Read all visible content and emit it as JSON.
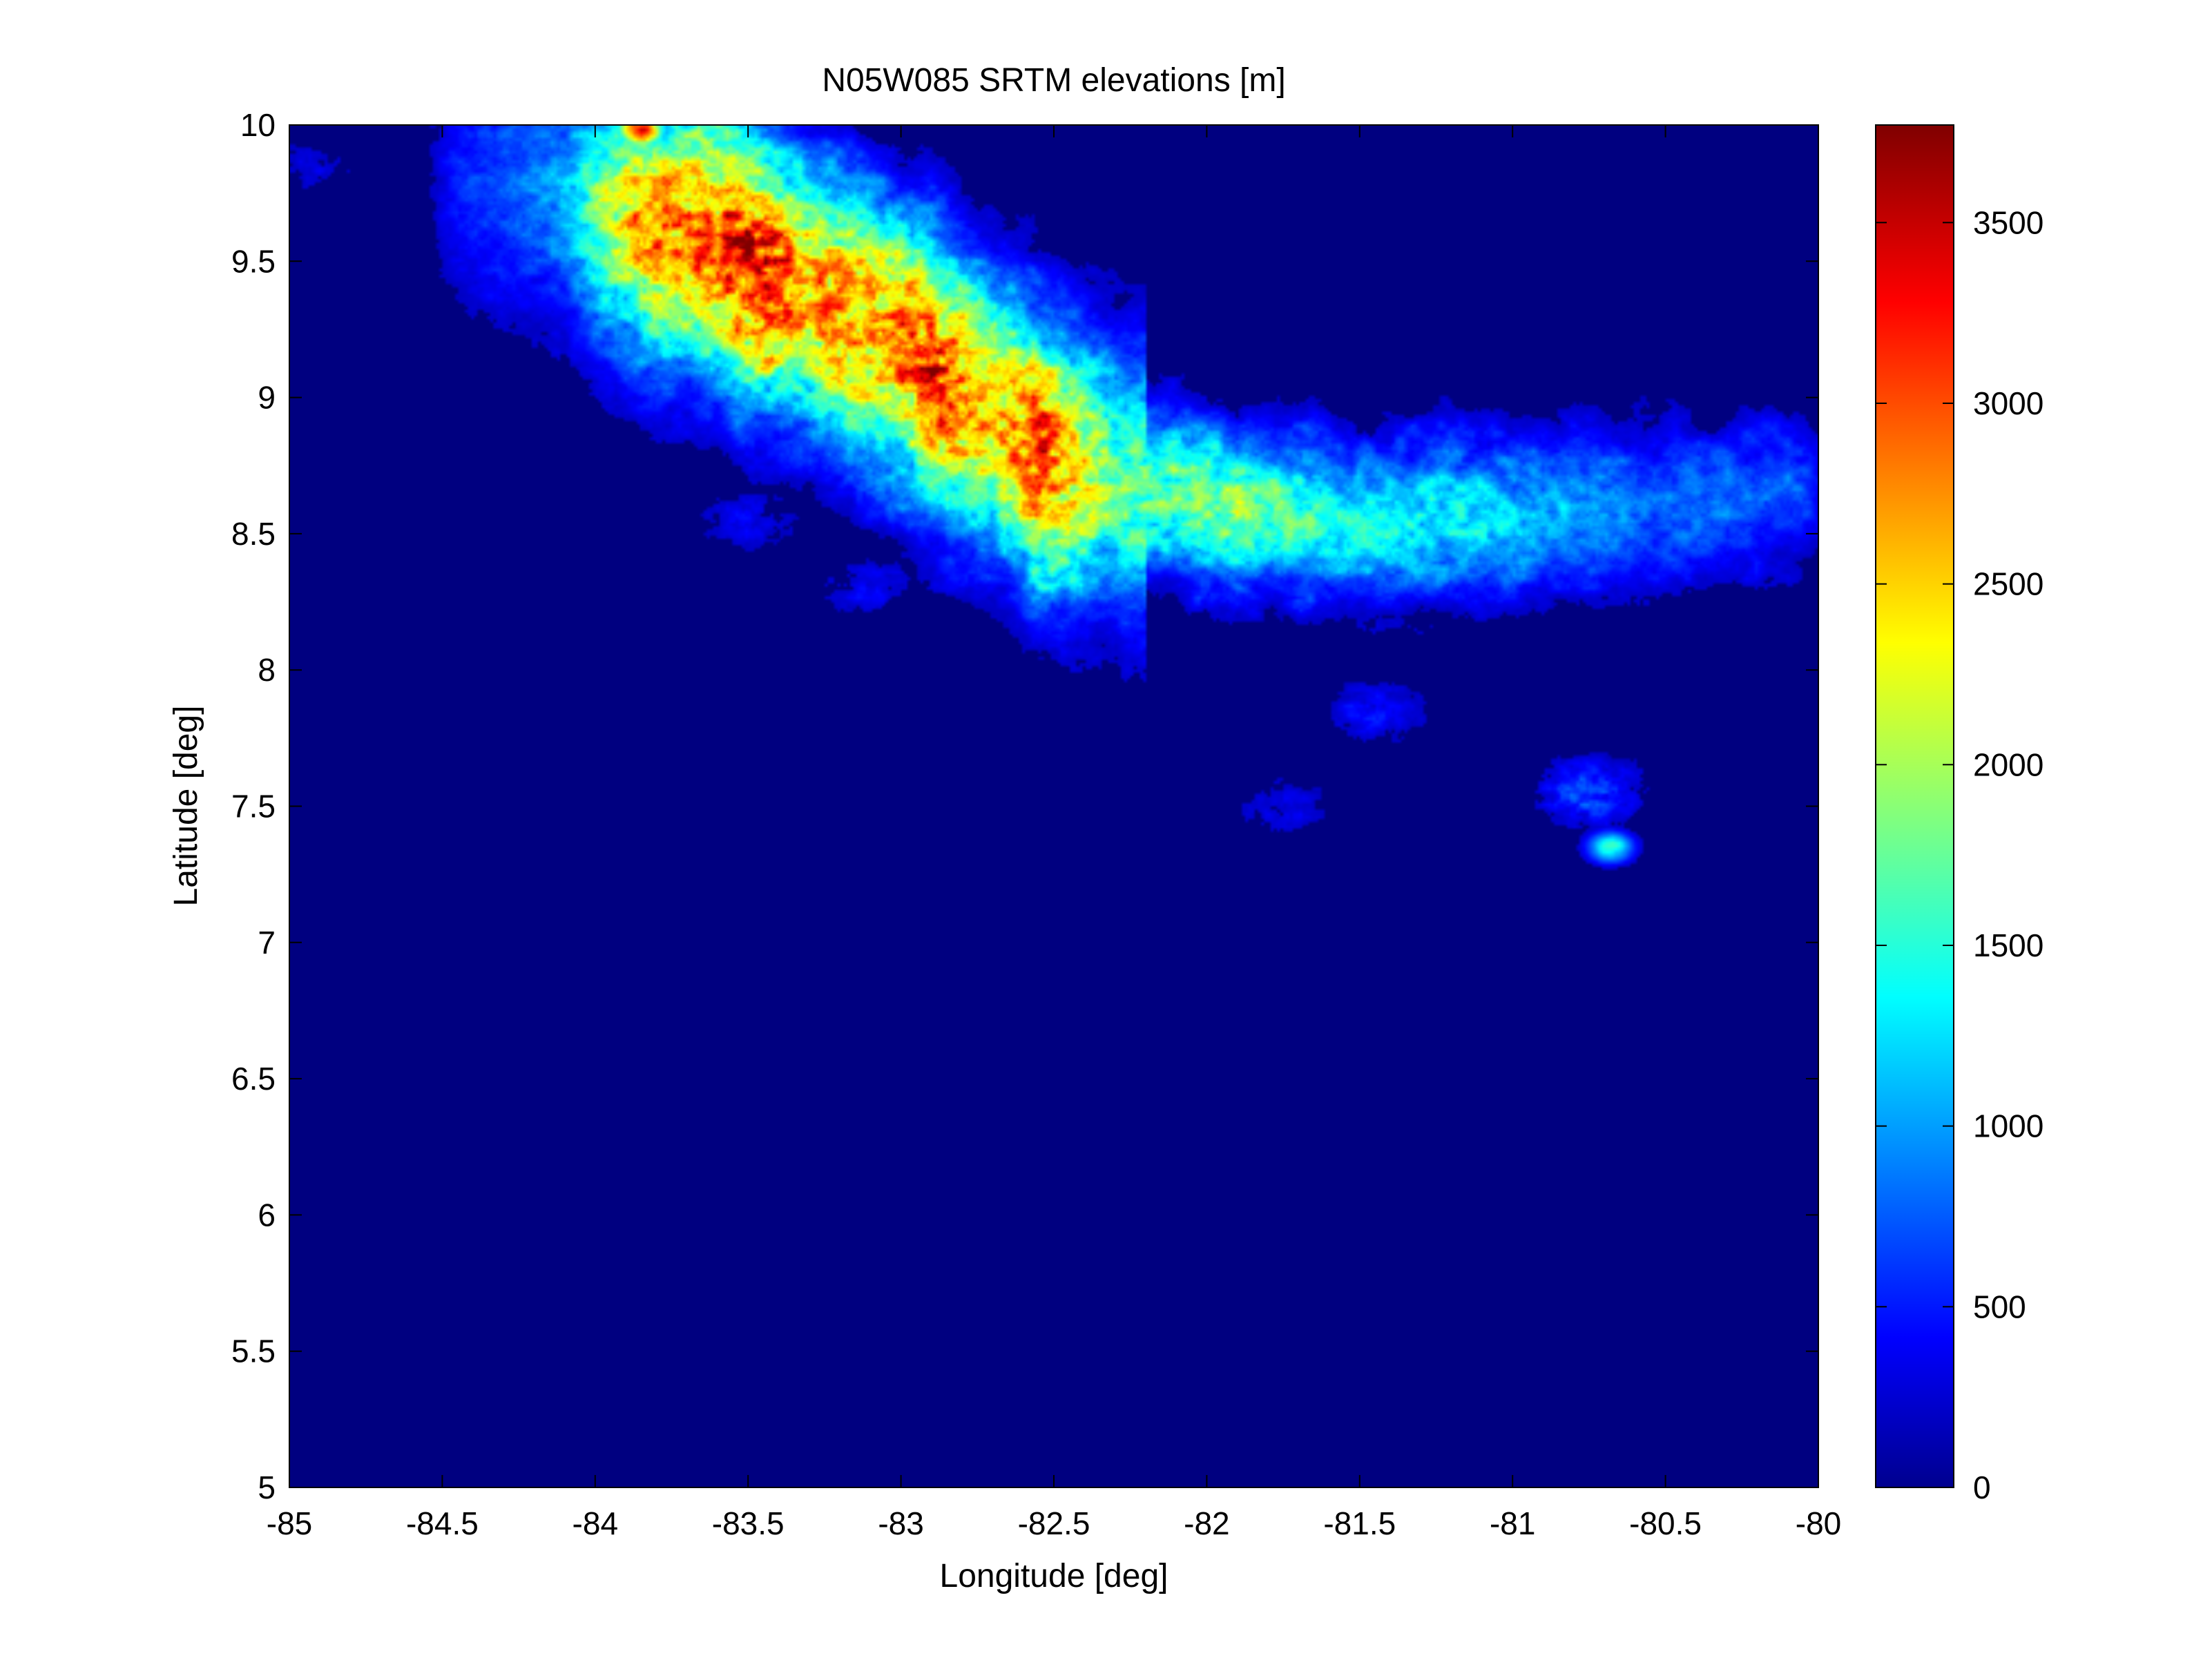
{
  "chart_data": {
    "type": "heatmap",
    "title": "N05W085 SRTM elevations [m]",
    "xlabel": "Longitude [deg]",
    "ylabel": "Latitude [deg]",
    "xlim": [
      -85,
      -80
    ],
    "ylim": [
      5,
      10
    ],
    "x_ticks": [
      -85,
      -84.5,
      -84,
      -83.5,
      -83,
      -82.5,
      -82,
      -81.5,
      -81,
      -80.5,
      -80
    ],
    "x_tick_labels": [
      "-85",
      "-84.5",
      "-84",
      "-83.5",
      "-83",
      "-82.5",
      "-82",
      "-81.5",
      "-81",
      "-80.5",
      "-80"
    ],
    "y_ticks": [
      5,
      5.5,
      6,
      6.5,
      7,
      7.5,
      8,
      8.5,
      9,
      9.5,
      10
    ],
    "y_tick_labels": [
      "5",
      "5.5",
      "6",
      "6.5",
      "7",
      "7.5",
      "8",
      "8.5",
      "9",
      "9.5",
      "10"
    ],
    "colormap": "jet",
    "colorbar": {
      "min": 0,
      "max": 3770,
      "ticks": [
        0,
        500,
        1000,
        1500,
        2000,
        2500,
        3000,
        3500
      ],
      "tick_labels": [
        "0",
        "500",
        "1000",
        "1500",
        "2000",
        "2500",
        "3000",
        "3500"
      ]
    },
    "background_value": 0,
    "ridge_profile": {
      "description_units": "lon deg, lat deg, elevation m",
      "points": [
        {
          "lon": -84.4,
          "lat": 9.8,
          "elev": 700
        },
        {
          "lon": -84.1,
          "lat": 9.75,
          "elev": 1200
        },
        {
          "lon": -83.85,
          "lat": 9.62,
          "elev": 3000
        },
        {
          "lon": -83.6,
          "lat": 9.57,
          "elev": 3300
        },
        {
          "lon": -83.48,
          "lat": 9.48,
          "elev": 3750
        },
        {
          "lon": -83.3,
          "lat": 9.38,
          "elev": 2900
        },
        {
          "lon": -83.05,
          "lat": 9.22,
          "elev": 3100
        },
        {
          "lon": -82.9,
          "lat": 9.1,
          "elev": 3500
        },
        {
          "lon": -82.7,
          "lat": 8.92,
          "elev": 2700
        },
        {
          "lon": -82.55,
          "lat": 8.8,
          "elev": 3450
        },
        {
          "lon": -82.3,
          "lat": 8.7,
          "elev": 1900
        },
        {
          "lon": -81.9,
          "lat": 8.58,
          "elev": 2100
        },
        {
          "lon": -81.5,
          "lat": 8.55,
          "elev": 1600
        },
        {
          "lon": -81.1,
          "lat": 8.55,
          "elev": 1500
        },
        {
          "lon": -80.6,
          "lat": 8.6,
          "elev": 1000
        },
        {
          "lon": -80.1,
          "lat": 8.65,
          "elev": 900
        }
      ]
    },
    "peaks": [
      {
        "lon": -83.85,
        "lat": 9.98,
        "elev": 3600
      },
      {
        "lon": -83.48,
        "lat": 9.48,
        "elev": 3770
      },
      {
        "lon": -82.9,
        "lat": 9.1,
        "elev": 3500
      },
      {
        "lon": -82.55,
        "lat": 8.8,
        "elev": 3450
      },
      {
        "lon": -80.68,
        "lat": 7.35,
        "elev": 1700
      }
    ],
    "secondary_ranges": [
      {
        "lon": -80.75,
        "lat": 7.55,
        "elev": 900
      },
      {
        "lon": -81.45,
        "lat": 7.85,
        "elev": 600
      },
      {
        "lon": -83.1,
        "lat": 8.3,
        "elev": 500
      },
      {
        "lon": -83.5,
        "lat": 8.55,
        "elev": 500
      },
      {
        "lon": -81.75,
        "lat": 7.5,
        "elev": 450
      },
      {
        "lon": -84.92,
        "lat": 9.85,
        "elev": 400
      }
    ]
  }
}
